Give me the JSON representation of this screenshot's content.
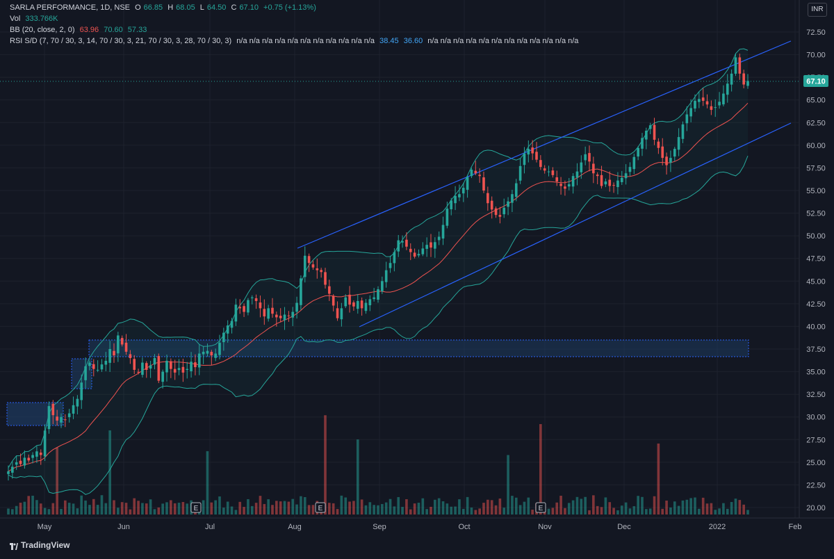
{
  "header": {
    "symbol": "SARLA PERFORMANCE, 1D, NSE",
    "open_label": "O",
    "open": "66.85",
    "high_label": "H",
    "high": "68.05",
    "low_label": "L",
    "low": "64.50",
    "close_label": "C",
    "close": "67.10",
    "change": "+0.75 (+1.13%)",
    "vol_label": "Vol",
    "vol_value": "333.766K",
    "bb_label": "BB (20, close, 2, 0)",
    "bb_basis": "63.96",
    "bb_upper": "70.60",
    "bb_lower": "57.33",
    "rsi_label": "RSI S/D (7, 70 / 30, 3, 14, 70 / 30, 3, 21, 70 / 30, 3, 28, 70 / 30, 3)",
    "rsi_na_before": "n/a n/a n/a n/a n/a n/a n/a n/a n/a n/a n/a",
    "rsi_v1": "38.45",
    "rsi_v2": "36.60",
    "rsi_na_after": "n/a n/a n/a n/a n/a n/a n/a n/a n/a n/a n/a n/a"
  },
  "currency": "INR",
  "brand": "TradingView",
  "colors": {
    "background": "#131722",
    "up": "#26a69a",
    "down": "#ef5350",
    "bb_band": "#26a69a",
    "bb_basis": "#ef5350",
    "channel": "#2962ff",
    "zone": "#1e3a5f",
    "grid": "#1e222d",
    "axis_text": "#b2b5be"
  },
  "chart_data": {
    "type": "candlestick",
    "y_ticks": [
      "72.50",
      "70.00",
      "67.50",
      "65.00",
      "62.50",
      "60.00",
      "57.50",
      "55.00",
      "52.50",
      "50.00",
      "47.50",
      "45.00",
      "42.50",
      "40.00",
      "37.50",
      "35.00",
      "32.50",
      "30.00",
      "27.50",
      "25.00",
      "22.50",
      "20.00"
    ],
    "ylim": [
      19.5,
      74.3
    ],
    "x_labels": [
      "May",
      "Jun",
      "Jul",
      "Aug",
      "Sep",
      "Oct",
      "Nov",
      "Dec",
      "2022",
      "Feb"
    ],
    "last_price_label": "67.10",
    "last_price": 67.1,
    "earnings_markers": [
      "E",
      "E",
      "E"
    ],
    "closes": [
      24.0,
      24.5,
      25.0,
      24.8,
      25.5,
      25.2,
      25.8,
      26.2,
      25.8,
      28.5,
      31.2,
      30.2,
      29.6,
      30.0,
      29.7,
      30.4,
      31.3,
      32.0,
      33.8,
      35.6,
      36.0,
      35.3,
      35.2,
      35.8,
      36.2,
      37.5,
      36.8,
      39.0,
      38.0,
      37.2,
      36.5,
      35.2,
      34.9,
      36.0,
      35.2,
      35.7,
      36.5,
      34.0,
      35.0,
      36.2,
      35.3,
      34.9,
      35.4,
      34.9,
      35.3,
      36.1,
      35.5,
      37.0,
      37.2,
      37.3,
      36.8,
      37.0,
      38.2,
      39.3,
      40.1,
      40.6,
      42.4,
      42.0,
      41.6,
      42.9,
      43.2,
      42.8,
      42.0,
      41.1,
      42.0,
      41.4,
      41.0,
      40.9,
      41.3,
      41.2,
      41.6,
      42.6,
      45.3,
      47.8,
      47.0,
      46.5,
      46.2,
      46.0,
      44.6,
      43.6,
      42.3,
      40.9,
      42.0,
      43.2,
      42.4,
      42.2,
      42.8,
      42.0,
      42.6,
      43.0,
      43.2,
      44.1,
      45.0,
      46.2,
      47.0,
      48.2,
      49.5,
      49.4,
      48.8,
      48.2,
      47.7,
      48.0,
      48.6,
      49.0,
      48.7,
      49.3,
      49.9,
      51.2,
      53.0,
      53.9,
      54.4,
      54.6,
      55.3,
      56.5,
      57.3,
      56.9,
      56.6,
      55.0,
      53.6,
      52.9,
      52.3,
      52.1,
      53.1,
      53.8,
      54.6,
      55.8,
      57.7,
      59.1,
      59.6,
      59.1,
      58.4,
      57.6,
      57.2,
      57.1,
      56.7,
      56.0,
      55.5,
      55.2,
      55.7,
      56.6,
      57.1,
      58.1,
      59.0,
      58.2,
      56.9,
      56.6,
      55.5,
      56.0,
      55.5,
      55.6,
      56.1,
      56.4,
      56.9,
      57.6,
      58.7,
      59.7,
      60.8,
      61.6,
      62.2,
      60.6,
      59.7,
      58.6,
      57.8,
      58.6,
      59.6,
      60.9,
      62.3,
      63.4,
      64.1,
      64.9,
      65.1,
      64.9,
      64.5,
      63.9,
      64.2,
      64.8,
      65.7,
      66.8,
      67.9,
      69.7,
      67.9,
      66.7,
      67.1
    ]
  }
}
